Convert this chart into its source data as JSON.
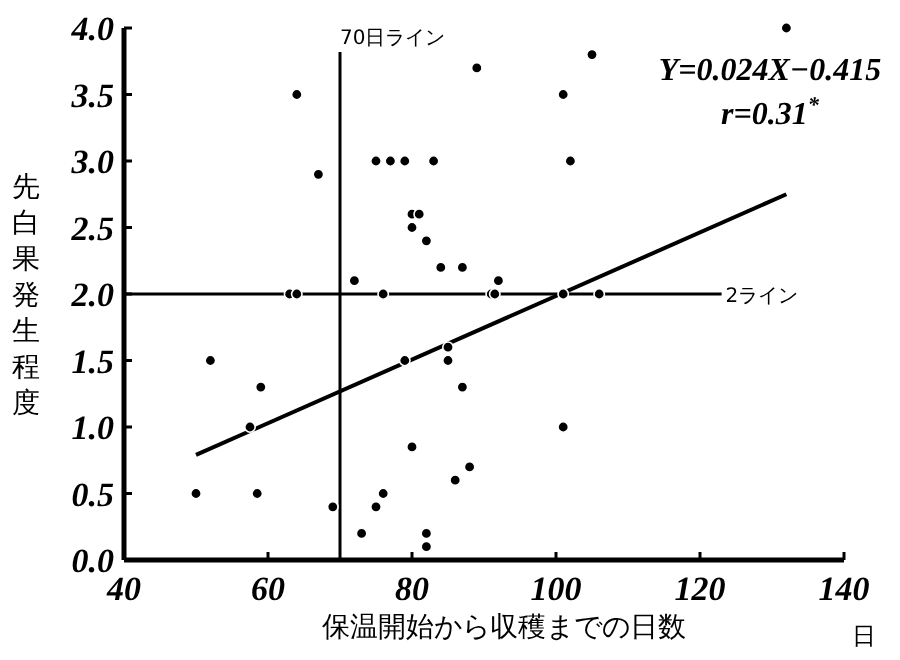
{
  "chart_data": {
    "type": "scatter",
    "ylabel": "先白果発生程度",
    "xlabel": "保温開始から収穫までの日数",
    "annotations": [
      "Y=0.024X−0.415",
      "r=0.31$^{*}$",
      "日"
    ],
    "xlim": [
      40,
      140
    ],
    "ylim": [
      0,
      4
    ],
    "xticks": [
      40,
      60,
      80,
      100,
      120,
      140
    ],
    "yticks": [
      {
        "value": 0,
        "label": "0.0"
      },
      {
        "value": 0.5,
        "label": "0.5"
      },
      {
        "value": 1,
        "label": "1.0"
      },
      {
        "value": 1.5,
        "label": "1.5"
      },
      {
        "value": 2,
        "label": "2.0"
      },
      {
        "value": 2.5,
        "label": "2.5"
      },
      {
        "value": 3,
        "label": "3.0"
      },
      {
        "value": 3.5,
        "label": "3.5"
      },
      {
        "value": 4,
        "label": "4.0"
      }
    ],
    "grid": false,
    "marker": "circle",
    "ref_lines": [
      {
        "axis": "x",
        "value": 70,
        "label": "70日ライン"
      },
      {
        "axis": "y",
        "value": 2,
        "label": "2ライン"
      }
    ],
    "series": [
      {
        "color": "#000000",
        "x": [
          64,
          67,
          63,
          64,
          72,
          75,
          77,
          79,
          83,
          76,
          80,
          81,
          80,
          82,
          84,
          132,
          105,
          89,
          101,
          102,
          87,
          92,
          91,
          91.5,
          101,
          106,
          52,
          59,
          57.5,
          50,
          58.5,
          69,
          73,
          75,
          76,
          79,
          80,
          82,
          82,
          85,
          85,
          87,
          101,
          86,
          88
        ],
        "values": [
          3.5,
          2.9,
          2.0,
          2.0,
          2.1,
          3.0,
          3.0,
          3.0,
          3.0,
          2.0,
          2.6,
          2.6,
          2.5,
          2.4,
          2.2,
          4.0,
          3.8,
          3.7,
          3.5,
          3.0,
          2.2,
          2.1,
          2.0,
          2.0,
          2.0,
          2.0,
          1.5,
          1.3,
          1.0,
          0.5,
          0.5,
          0.4,
          0.2,
          0.4,
          0.5,
          1.5,
          0.85,
          0.2,
          0.1,
          1.5,
          1.6,
          1.3,
          1.0,
          0.6,
          0.7
        ]
      },
      {
        "type": "line",
        "color": "#000000",
        "line_style": "solid",
        "marker": "none",
        "x": [
          50,
          132
        ],
        "values": [
          0.79,
          2.75
        ]
      }
    ]
  }
}
